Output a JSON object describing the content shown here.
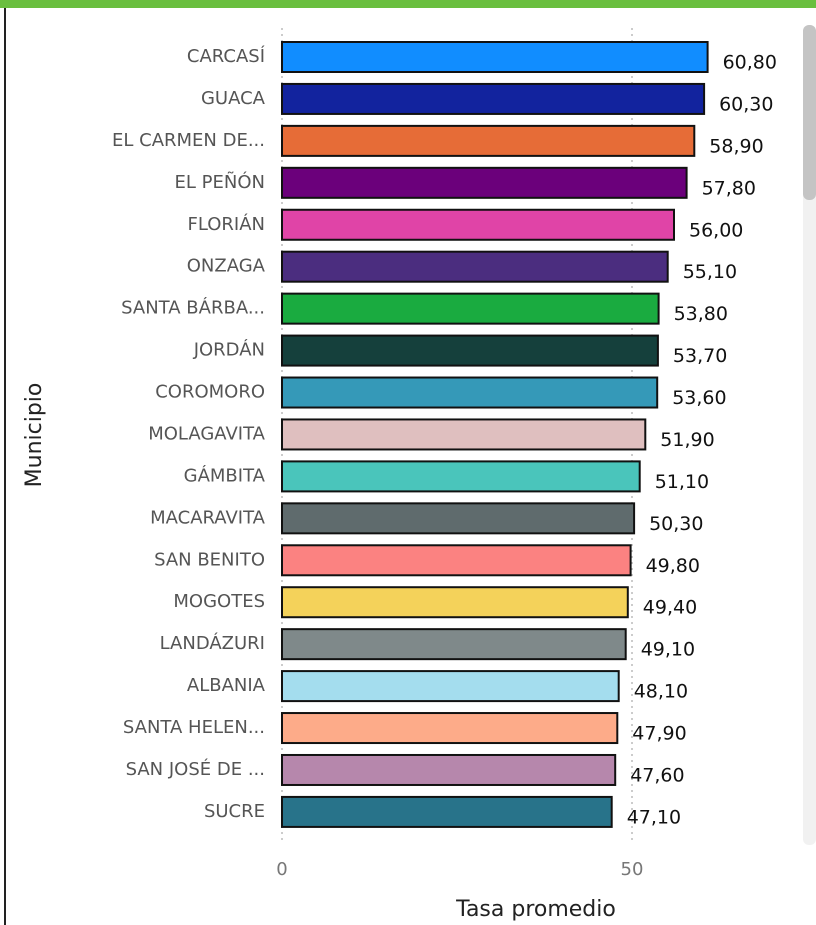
{
  "chart_data": {
    "type": "barh",
    "xlabel": "Tasa promedio",
    "ylabel": "Municipio",
    "categories": [
      "CARCASÍ",
      "GUACA",
      "EL CARMEN DE...",
      "EL PEÑÓN",
      "FLORIÁN",
      "ONZAGA",
      "SANTA BÁRBA...",
      "JORDÁN",
      "COROMORO",
      "MOLAGAVITA",
      "GÁMBITA",
      "MACARAVITA",
      "SAN BENITO",
      "MOGOTES",
      "LANDÁZURI",
      "ALBANIA",
      "SANTA HELEN...",
      "SAN JOSÉ DE ...",
      "SUCRE"
    ],
    "values": [
      60.8,
      60.3,
      58.9,
      57.8,
      56.0,
      55.1,
      53.8,
      53.7,
      53.6,
      51.9,
      51.1,
      50.3,
      49.8,
      49.4,
      49.1,
      48.1,
      47.9,
      47.6,
      47.1
    ],
    "value_labels": [
      "60,80",
      "60,30",
      "58,90",
      "57,80",
      "56,00",
      "55,10",
      "53,80",
      "53,70",
      "53,60",
      "51,90",
      "51,10",
      "50,30",
      "49,80",
      "49,40",
      "49,10",
      "48,10",
      "47,90",
      "47,60",
      "47,10"
    ],
    "colors": [
      "#118dff",
      "#12239e",
      "#e66c37",
      "#6b007b",
      "#e044a7",
      "#4b2d7f",
      "#1aab40",
      "#15403c",
      "#3599b8",
      "#dfbfbf",
      "#4ac5bb",
      "#5f6b6d",
      "#fb8281",
      "#f4d25a",
      "#7f898a",
      "#a4ddee",
      "#fdab89",
      "#b687ac",
      "#28738a"
    ],
    "xlim": [
      0,
      72
    ],
    "xticks": [
      0,
      50
    ],
    "grid": true
  }
}
